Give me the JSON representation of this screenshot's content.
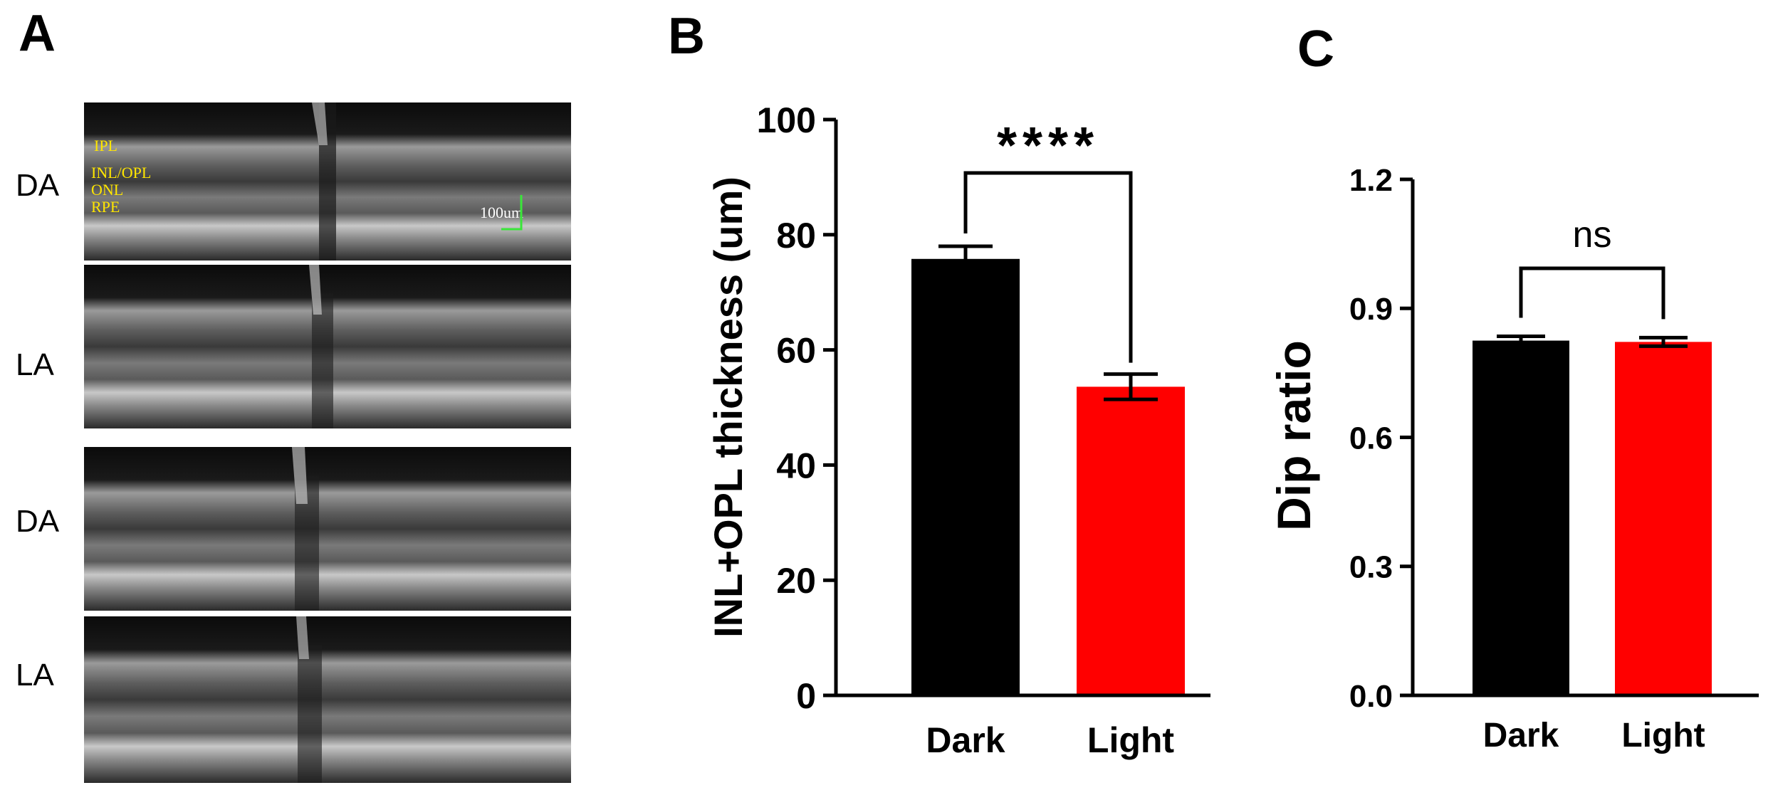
{
  "panel_a": {
    "label": "A",
    "rows": [
      {
        "label": "DA",
        "has_annotations": true
      },
      {
        "label": "LA",
        "has_annotations": false
      },
      {
        "label": "DA",
        "has_annotations": false
      },
      {
        "label": "LA",
        "has_annotations": false
      }
    ],
    "layer_labels": [
      "IPL",
      "INL/OPL",
      "ONL",
      "RPE"
    ],
    "scale_bar": "100um",
    "colors": {
      "layer_text": "#ffe600",
      "scale_bar": "#39e639"
    }
  },
  "chart_data": [
    {
      "panel_label": "B",
      "type": "bar",
      "categories": [
        "Dark",
        "Light"
      ],
      "values": [
        75.8,
        53.6
      ],
      "errors": [
        2.2,
        2.2
      ],
      "colors": [
        "#000000",
        "#ff0000"
      ],
      "ylabel": "INL+OPL thickness (um)",
      "ylim": [
        0,
        100
      ],
      "yticks": [
        "0",
        "20",
        "40",
        "60",
        "80",
        "100"
      ],
      "ytick_values": [
        0,
        20,
        40,
        60,
        80,
        100
      ],
      "significance": "****"
    },
    {
      "panel_label": "C",
      "type": "bar",
      "categories": [
        "Dark",
        "Light"
      ],
      "values": [
        0.825,
        0.822
      ],
      "errors": [
        0.01,
        0.01
      ],
      "colors": [
        "#000000",
        "#ff0000"
      ],
      "ylabel": "Dip ratio",
      "ylim": [
        0,
        1.2
      ],
      "yticks": [
        "0.0",
        "0.3",
        "0.6",
        "0.9",
        "1.2"
      ],
      "ytick_values": [
        0,
        0.3,
        0.6,
        0.9,
        1.2
      ],
      "significance": "ns"
    }
  ]
}
